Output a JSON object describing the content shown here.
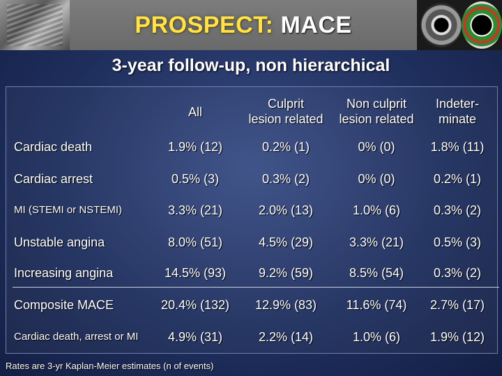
{
  "slide": {
    "title_accent": "PROSPECT:",
    "title_rest": "MACE",
    "subtitle": "3-year follow-up, non hierarchical",
    "footnote": "Rates are 3-yr Kaplan-Meier estimates (n of events)"
  },
  "table": {
    "columns": [
      {
        "line1": "All",
        "line2": ""
      },
      {
        "line1": "Culprit",
        "line2": "lesion related"
      },
      {
        "line1": "Non culprit",
        "line2": "lesion related"
      },
      {
        "line1": "Indeter-",
        "line2": "minate"
      }
    ],
    "rows": [
      {
        "label": "Cardiac death",
        "values": [
          "1.9% (12)",
          "0.2% (1)",
          "0% (0)",
          "1.8% (11)"
        ]
      },
      {
        "label": "Cardiac arrest",
        "values": [
          "0.5% (3)",
          "0.3% (2)",
          "0% (0)",
          "0.2% (1)"
        ]
      },
      {
        "label": "MI (STEMI or NSTEMI)",
        "values": [
          "3.3% (21)",
          "2.0% (13)",
          "1.0% (6)",
          "0.3% (2)"
        ]
      },
      {
        "label": "Unstable angina",
        "values": [
          "8.0% (51)",
          "4.5% (29)",
          "3.3% (21)",
          "0.5% (3)"
        ]
      },
      {
        "label": "Increasing angina",
        "values": [
          "14.5% (93)",
          "9.2% (59)",
          "8.5% (54)",
          "0.3% (2)"
        ]
      },
      {
        "label": "Composite MACE",
        "values": [
          "20.4% (132)",
          "12.9% (83)",
          "11.6% (74)",
          "2.7% (17)"
        ]
      },
      {
        "label": "Cardiac death, arrest or MI",
        "values": [
          "4.9% (31)",
          "2.2% (14)",
          "1.0% (6)",
          "1.9% (12)"
        ]
      }
    ]
  },
  "colors": {
    "background": "#2a3a70",
    "title_accent": "#ffe24a",
    "text": "#ffffff"
  }
}
